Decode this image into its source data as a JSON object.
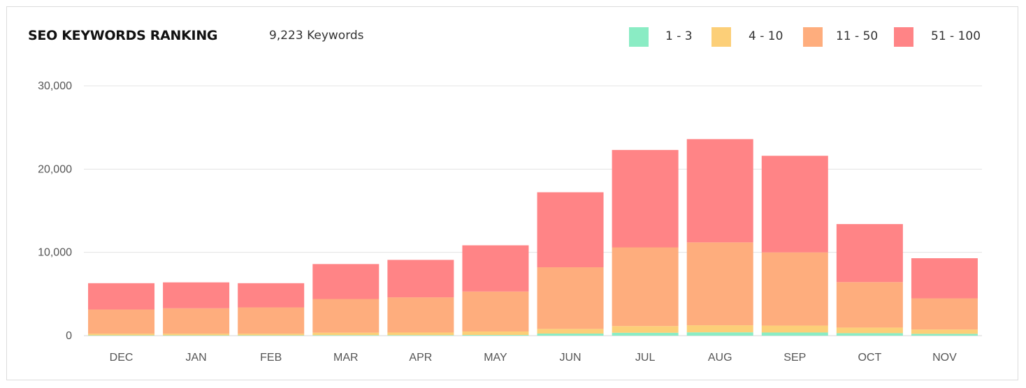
{
  "header": {
    "title": "SEO KEYWORDS RANKING",
    "keyword_count": "9,223 Keywords"
  },
  "legend": [
    {
      "label": "1 - 3",
      "color": "#8AECC4"
    },
    {
      "label": "4 - 10",
      "color": "#FCCF78"
    },
    {
      "label": "11 - 50",
      "color": "#FEAD7D"
    },
    {
      "label": "51 - 100",
      "color": "#FF8486"
    }
  ],
  "chart_data": {
    "type": "bar",
    "stacked": true,
    "categories": [
      "DEC",
      "JAN",
      "FEB",
      "MAR",
      "APR",
      "MAY",
      "JUN",
      "JUL",
      "AUG",
      "SEP",
      "OCT",
      "NOV"
    ],
    "series": [
      {
        "name": "1 - 3",
        "color": "#8AECC4",
        "values": [
          40,
          40,
          40,
          60,
          60,
          80,
          250,
          350,
          400,
          380,
          300,
          220
        ]
      },
      {
        "name": "4 - 10",
        "color": "#FCCF78",
        "values": [
          200,
          200,
          200,
          300,
          320,
          420,
          560,
          800,
          850,
          830,
          670,
          520
        ]
      },
      {
        "name": "11 - 50",
        "color": "#FEAD7D",
        "values": [
          2900,
          3050,
          3150,
          4040,
          4220,
          4800,
          7400,
          9450,
          9950,
          8790,
          5460,
          3740
        ]
      },
      {
        "name": "51 - 100",
        "color": "#FF8486",
        "values": [
          3160,
          3110,
          2910,
          4200,
          4500,
          5550,
          9010,
          11700,
          12400,
          11600,
          6970,
          4820
        ]
      }
    ],
    "ylim": [
      0,
      30000
    ],
    "yticks": [
      "0",
      "10,000",
      "20,000",
      "30,000"
    ],
    "ytick_values": [
      0,
      10000,
      20000,
      30000
    ],
    "grid": true,
    "legend_position": "top-right"
  }
}
